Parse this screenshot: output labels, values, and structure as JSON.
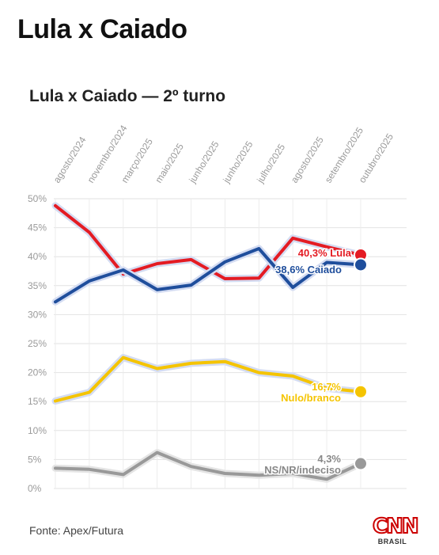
{
  "page": {
    "title": "Lula x Caiado"
  },
  "source": "Fonte: Apex/Futura",
  "logo": {
    "brand": "CNN",
    "sub": "BRASIL",
    "color": "#cc0000"
  },
  "chart_data": {
    "type": "line",
    "title": "Lula x Caiado — 2º turno",
    "xlabel": "",
    "ylabel": "",
    "categories": [
      "agosto/2024",
      "novembro/2024",
      "março/2025",
      "maio/2025",
      "junho/2025",
      "junho/2025",
      "julho/2025",
      "agosto/2025",
      "setembro/2025",
      "outubro/2025"
    ],
    "yticks": [
      "0%",
      "5%",
      "10%",
      "15%",
      "20%",
      "25%",
      "30%",
      "35%",
      "40%",
      "45%",
      "50%"
    ],
    "ylim": [
      0,
      50
    ],
    "grid": true,
    "legend": "end-labels",
    "series": [
      {
        "name": "Lula",
        "color": "#e41b23",
        "end_value_label": "40,3%",
        "end_name_label": "Lula",
        "values": [
          48.8,
          44.2,
          37.0,
          38.8,
          39.5,
          36.2,
          36.3,
          43.2,
          41.7,
          40.3
        ]
      },
      {
        "name": "Caiado",
        "color": "#1f4e9c",
        "end_value_label": "38,6%",
        "end_name_label": "Caiado",
        "values": [
          32.2,
          35.8,
          37.7,
          34.3,
          35.1,
          39.1,
          41.4,
          34.7,
          39.0,
          38.6
        ]
      },
      {
        "name": "Nulo/branco",
        "color": "#f5c400",
        "end_value_label": "16,7%",
        "end_name_label": "Nulo/branco",
        "values": [
          15.1,
          16.6,
          22.6,
          20.7,
          21.6,
          21.9,
          20.0,
          19.4,
          17.3,
          16.7
        ]
      },
      {
        "name": "NS/NR/indeciso",
        "color": "#999999",
        "end_value_label": "4,3%",
        "end_name_label": "NS/NR/indeciso",
        "values": [
          3.5,
          3.3,
          2.4,
          6.2,
          3.8,
          2.6,
          2.3,
          2.6,
          1.6,
          4.3
        ]
      }
    ]
  }
}
